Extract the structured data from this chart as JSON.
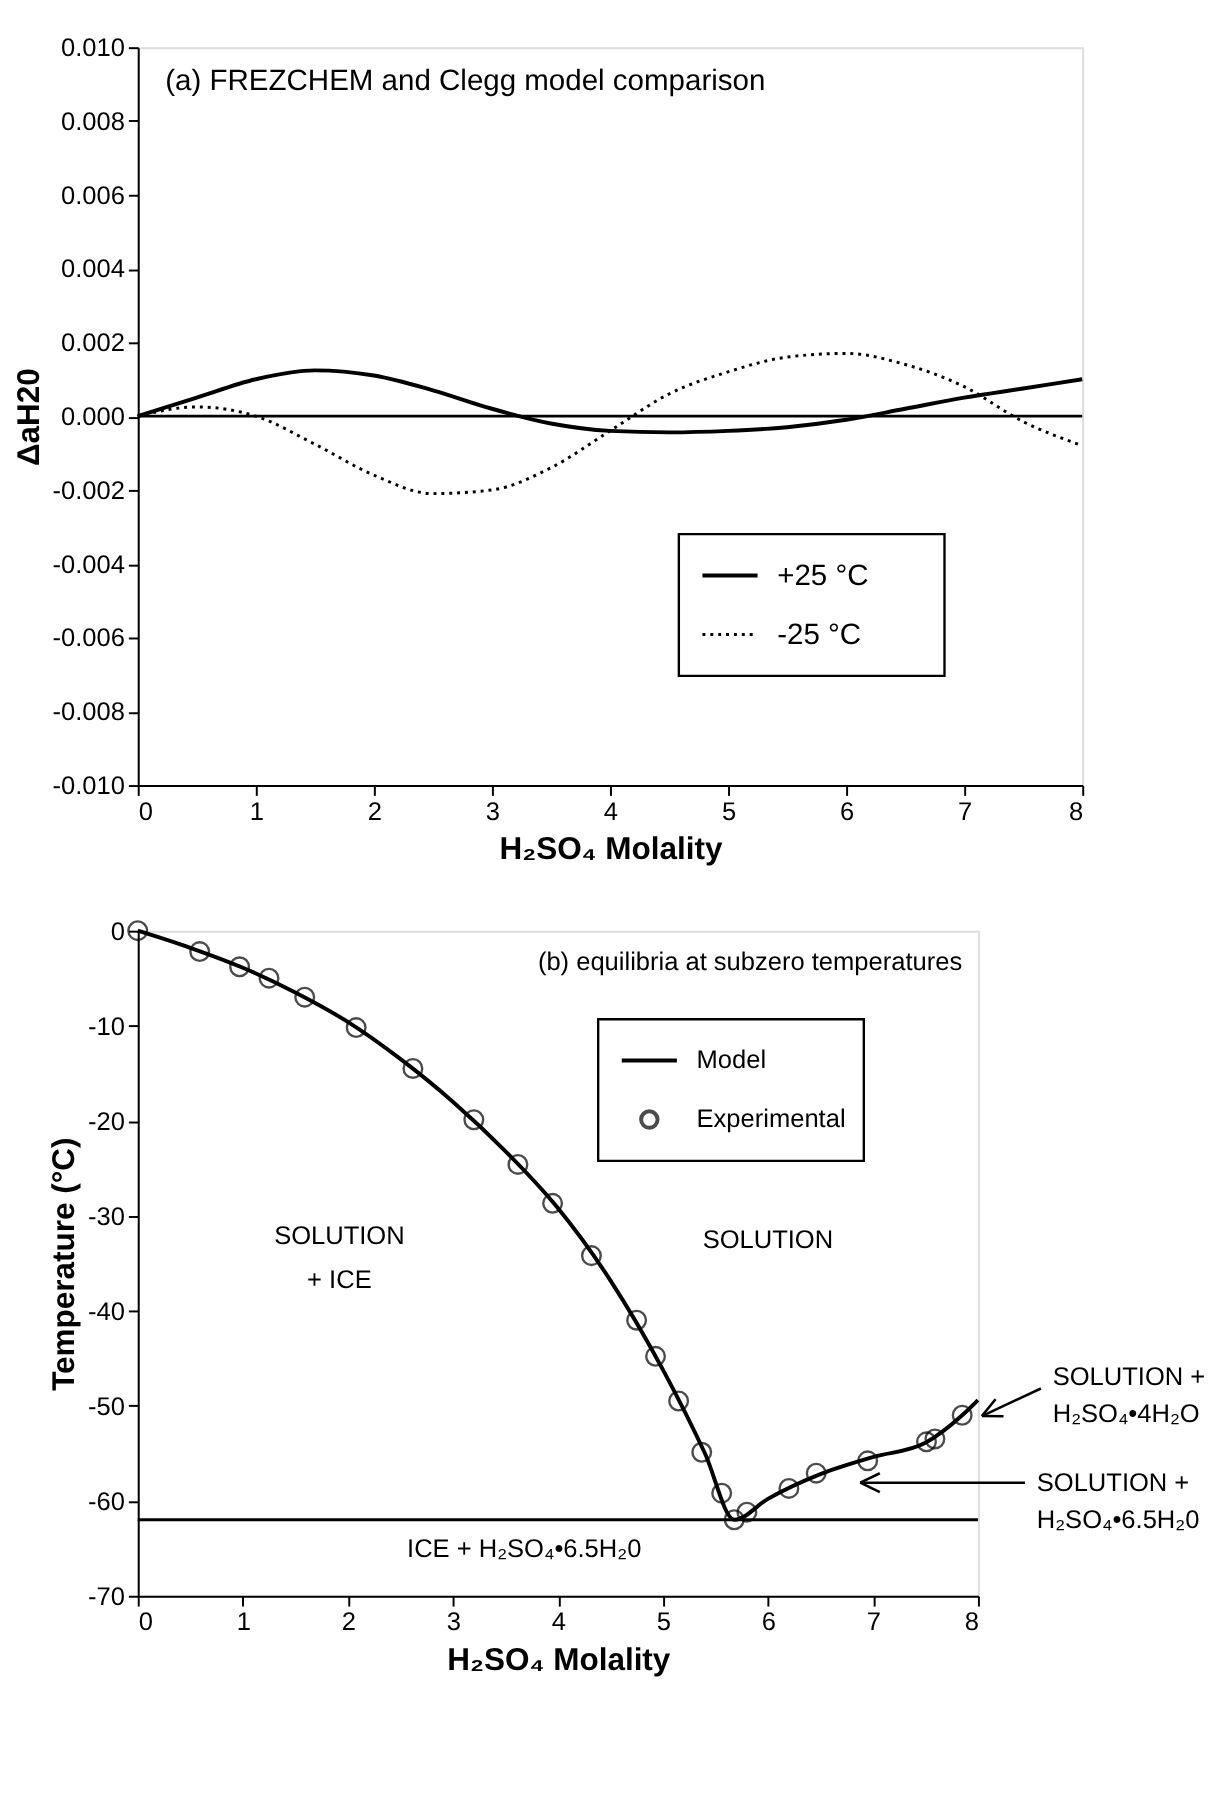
{
  "chart_data": [
    {
      "type": "line",
      "title": "(a) FREZCHEM and Clegg model comparison",
      "xlabel": "H₂SO₄ Molality",
      "ylabel": "ΔaH20",
      "xlim": [
        0,
        8
      ],
      "xticks": [
        0,
        1,
        2,
        3,
        4,
        5,
        6,
        7,
        8
      ],
      "ylim": [
        -0.01,
        0.01
      ],
      "yticks": [
        {
          "value": -0.01,
          "label": "-0.010"
        },
        {
          "value": -0.008,
          "label": "-0.008"
        },
        {
          "value": -0.006,
          "label": "-0.006"
        },
        {
          "value": -0.004,
          "label": "-0.004"
        },
        {
          "value": -0.002,
          "label": "-0.002"
        },
        {
          "value": 0,
          "label": "0.000"
        },
        {
          "value": 0.002,
          "label": "0.002"
        },
        {
          "value": 0.004,
          "label": "0.004"
        },
        {
          "value": 0.006,
          "label": "0.006"
        },
        {
          "value": 0.008,
          "label": "0.008"
        },
        {
          "value": 0.01,
          "label": "0.010"
        }
      ],
      "x": [
        0,
        0.5,
        1,
        1.5,
        2,
        2.5,
        3,
        3.5,
        4,
        4.5,
        5,
        5.5,
        6,
        6.5,
        7,
        7.5,
        8
      ],
      "series": [
        {
          "name": "+25 °C",
          "color": "#000000",
          "line_style": "solid",
          "values": [
            0,
            0.0005,
            0.001,
            0.00124,
            0.0011,
            0.0007,
            0.0002,
            -0.0002,
            -0.0004,
            -0.00044,
            -0.0004,
            -0.0003,
            -0.0001,
            0.0002,
            0.0005,
            0.00075,
            0.001
          ]
        },
        {
          "name": "-25 °C",
          "color": "#000000",
          "line_style": "dotted",
          "values": [
            0,
            0.00025,
            0,
            -0.00076,
            -0.0016,
            -0.0021,
            -0.002,
            -0.0014,
            -0.0004,
            0.0006,
            0.0012,
            0.0016,
            0.0017,
            0.0014,
            0.0008,
            -0.00015,
            -0.0008
          ]
        }
      ],
      "ref_lines": [
        {
          "axis": "y",
          "value": 0,
          "color": "#000000"
        }
      ],
      "legend": "bottom right",
      "grid": false,
      "marker": "none"
    },
    {
      "type": "line",
      "title": "(b)  equilibria at subzero temperatures",
      "xlabel": "H₂SO₄ Molality",
      "ylabel": "Temperature (°C)",
      "xlim": [
        0,
        8
      ],
      "xticks": [
        0,
        1,
        2,
        3,
        4,
        5,
        6,
        7,
        8
      ],
      "ylim": [
        -70,
        0
      ],
      "yticks": [
        -70,
        -60,
        -50,
        -40,
        -30,
        -20,
        -10,
        0
      ],
      "series": [
        {
          "name": "Model",
          "type": "line",
          "color": "#000000",
          "marker": "none",
          "x": [
            0,
            0.5,
            1,
            1.5,
            2,
            2.5,
            3,
            3.5,
            4,
            4.5,
            5,
            5.4,
            5.68,
            6,
            6.5,
            7,
            7.5,
            7.85,
            8
          ],
          "values": [
            0,
            -1.8,
            -3.9,
            -6.5,
            -9.6,
            -13.5,
            -18,
            -23.2,
            -29.2,
            -36.8,
            -46.2,
            -55,
            -62,
            -59.8,
            -57.2,
            -55.4,
            -53.9,
            -51,
            -49.4
          ]
        },
        {
          "name": "Experimental",
          "type": "scatter",
          "color": "#000000",
          "marker": "circle",
          "x": [
            0,
            0.59,
            0.97,
            1.25,
            1.59,
            2.08,
            2.62,
            3.2,
            3.62,
            3.95,
            4.32,
            4.75,
            4.93,
            5.15,
            5.37,
            5.56,
            5.68,
            5.8,
            6.2,
            6.46,
            6.95,
            7.51,
            7.59,
            7.85
          ],
          "values": [
            0,
            -2.2,
            -3.8,
            -5,
            -7,
            -10.2,
            -14.5,
            -19.9,
            -24.6,
            -28.7,
            -34.2,
            -41,
            -44.8,
            -49.5,
            -54.9,
            -59.2,
            -62,
            -61.2,
            -58.7,
            -57.1,
            -55.8,
            -53.8,
            -53.5,
            -51
          ]
        }
      ],
      "ref_lines": [
        {
          "axis": "y",
          "value": -62,
          "color": "#000000"
        }
      ],
      "annotations": [
        "SOLUTION\n+ ICE",
        "SOLUTION",
        "ICE + H₂SO₄•6.5H₂0",
        {
          "text": "SOLUTION +\nH₂SO₄•4H₂O",
          "x": 8,
          "y": -51.5
        },
        "SOLUTION +\nH₂SO₄•6.5H₂0"
      ],
      "legend": "top right",
      "grid": false
    }
  ]
}
